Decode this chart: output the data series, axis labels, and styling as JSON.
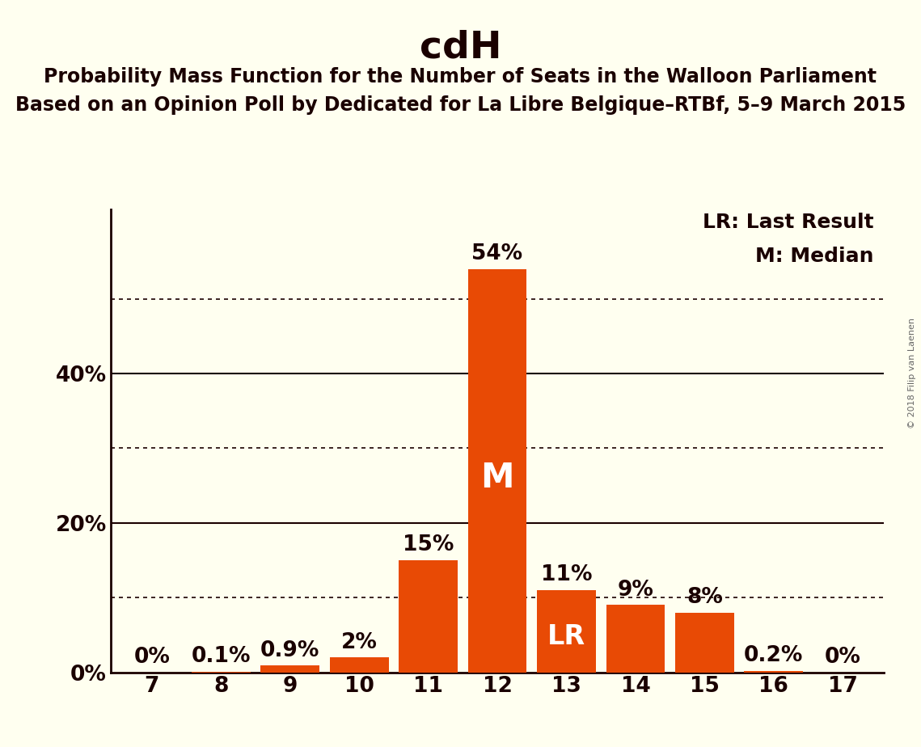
{
  "title": "cdH",
  "subtitle1": "Probability Mass Function for the Number of Seats in the Walloon Parliament",
  "subtitle2": "Based on an Opinion Poll by Dedicated for La Libre Belgique–RTBf, 5–9 March 2015",
  "watermark": "© 2018 Filip van Laenen",
  "seats": [
    7,
    8,
    9,
    10,
    11,
    12,
    13,
    14,
    15,
    16,
    17
  ],
  "probabilities": [
    0.0,
    0.1,
    0.9,
    2.0,
    15.0,
    54.0,
    11.0,
    9.0,
    8.0,
    0.2,
    0.0
  ],
  "bar_color": "#E84A05",
  "background_color": "#FFFFF0",
  "text_color": "#1A0000",
  "median_seat": 12,
  "lr_seat": 13,
  "ylim": [
    0,
    62
  ],
  "xlim": [
    6.4,
    17.6
  ],
  "legend_lr": "LR: Last Result",
  "legend_m": "M: Median",
  "bar_labels": [
    "0%",
    "0.1%",
    "0.9%",
    "2%",
    "15%",
    "54%",
    "11%",
    "9%",
    "8%",
    "0.2%",
    "0%"
  ],
  "solid_lines": [
    20,
    40
  ],
  "dotted_lines": [
    10,
    30,
    50
  ],
  "ytick_positions": [
    0,
    10,
    20,
    30,
    40,
    50
  ],
  "ytick_labels": [
    "0%",
    "",
    "20%",
    "",
    "40%",
    ""
  ],
  "bar_label_fontsize": 19,
  "tick_fontsize": 19,
  "legend_fontsize": 18,
  "title_fontsize": 34,
  "subtitle_fontsize": 17,
  "inside_label_m_fontsize": 30,
  "inside_label_lr_fontsize": 24
}
